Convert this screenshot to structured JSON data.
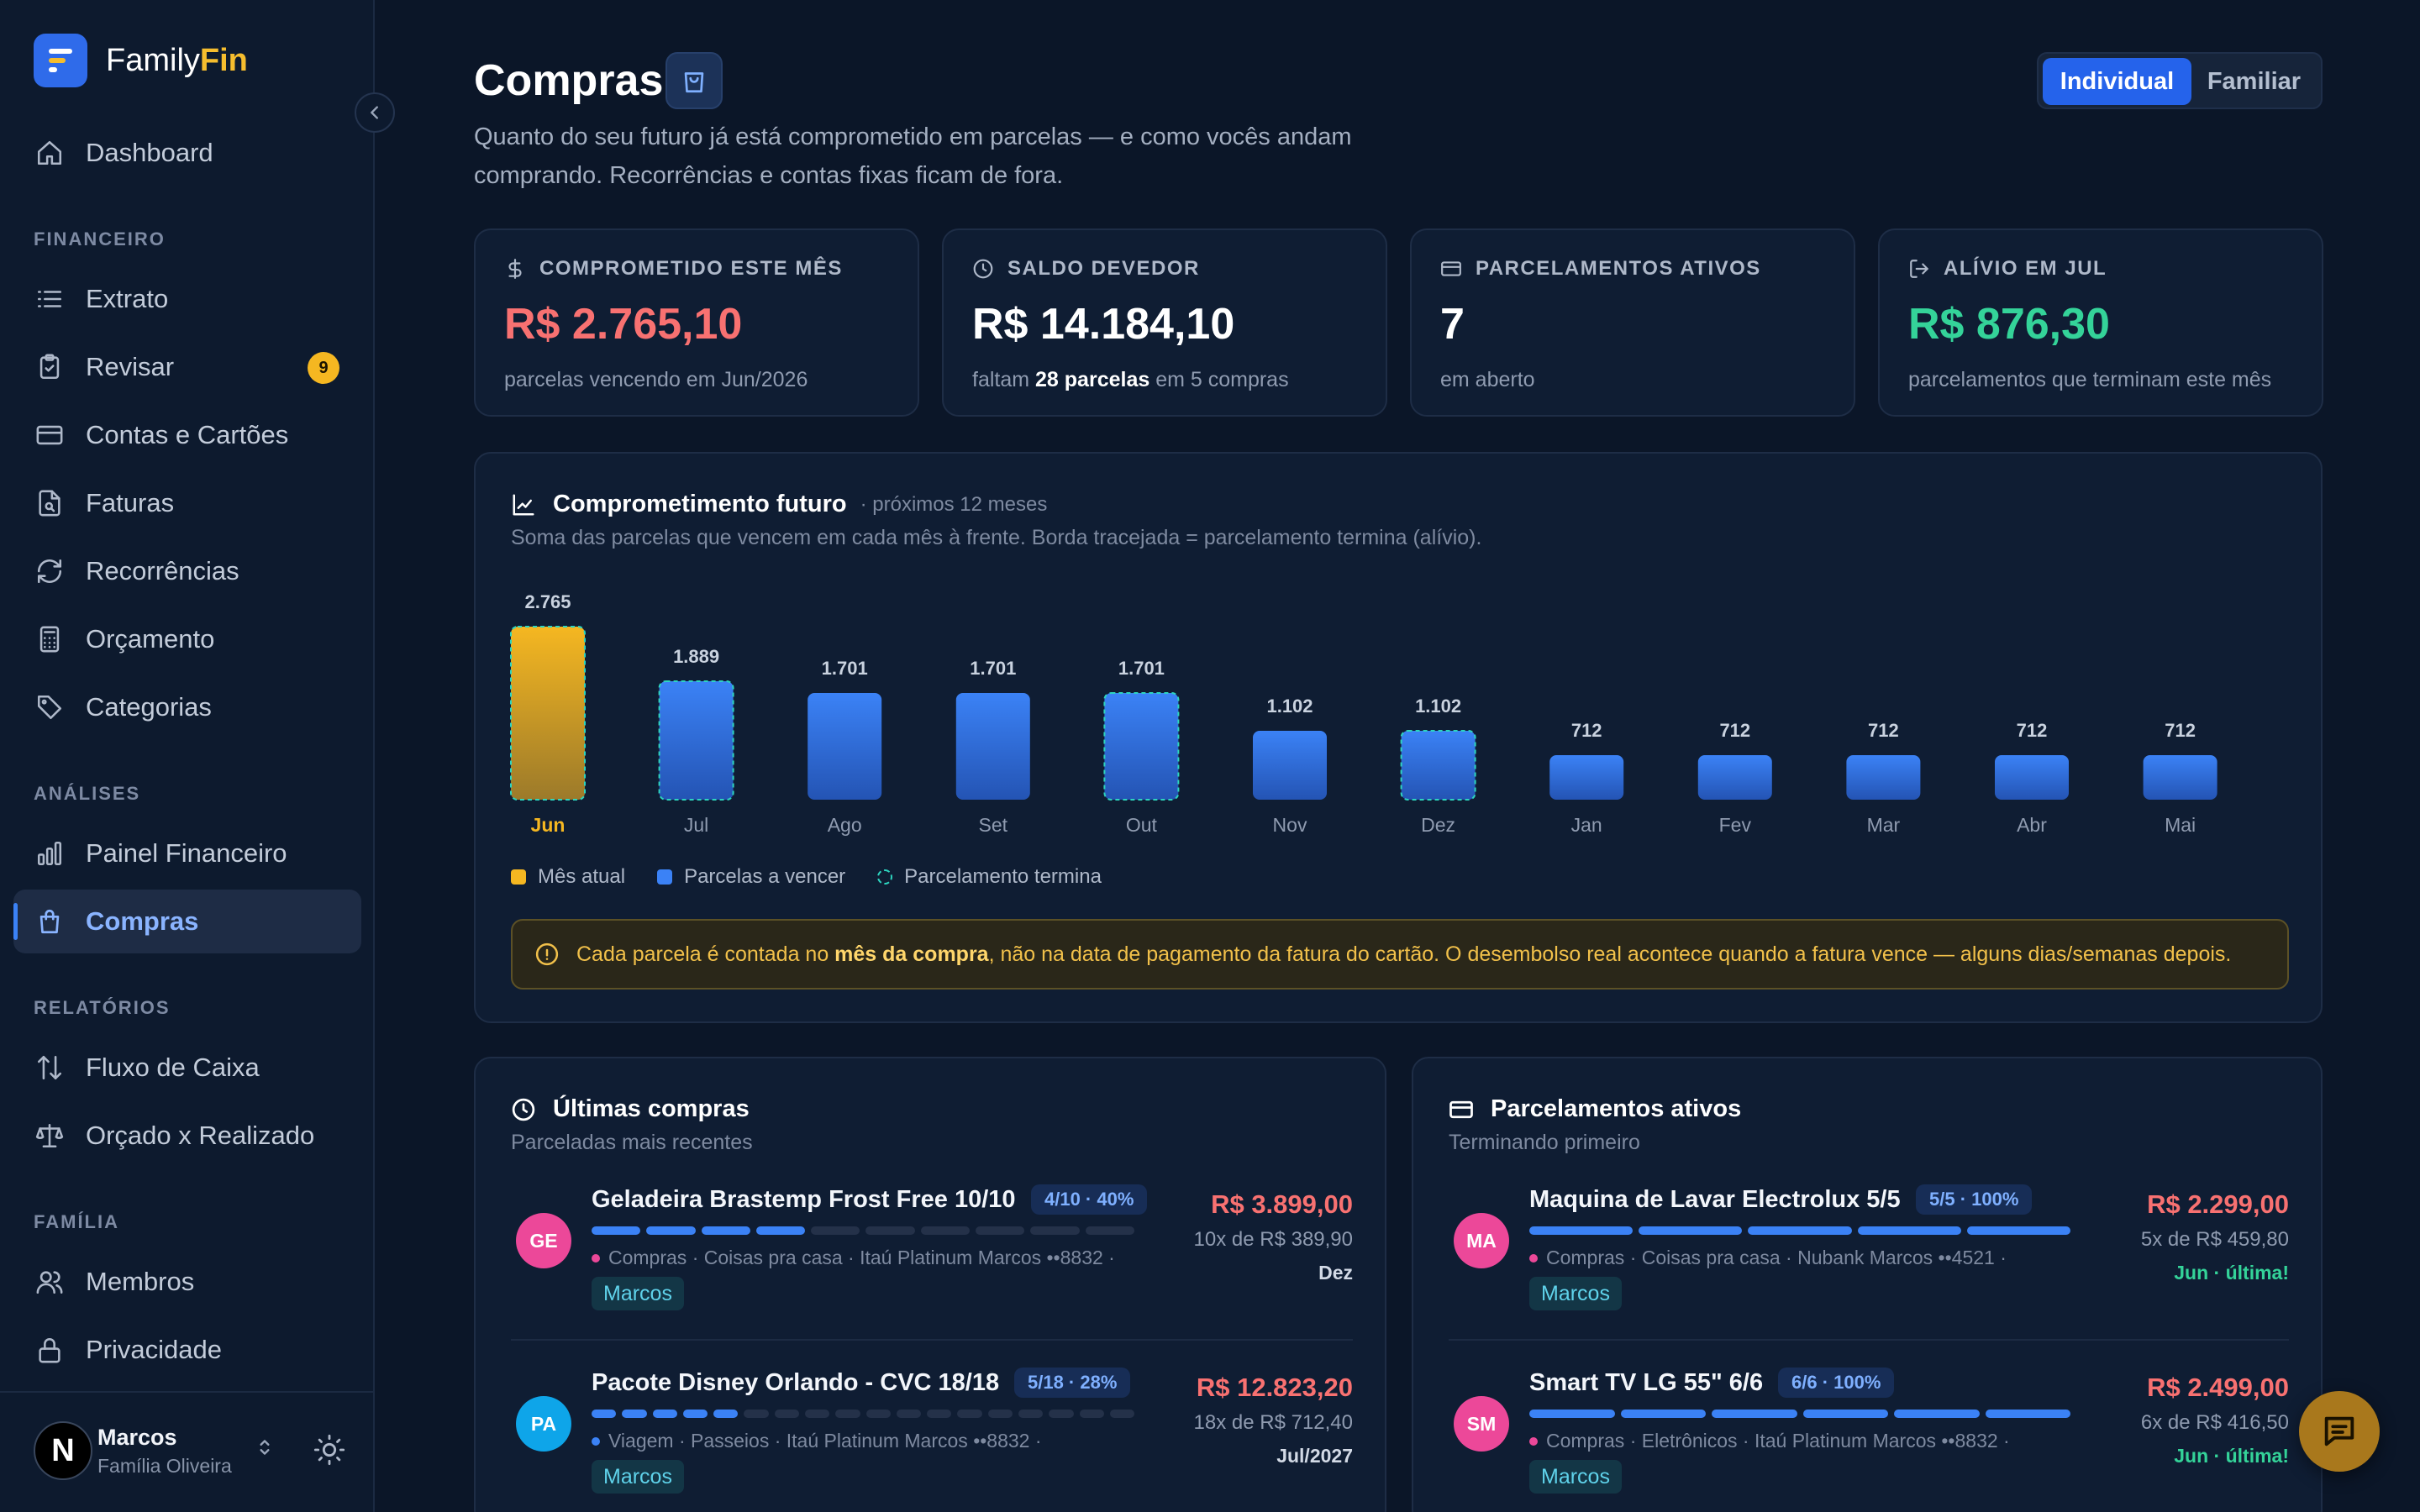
{
  "app": {
    "brand_prefix": "Family",
    "brand_suffix": "Fin",
    "colors": {
      "accent": "#2563eb",
      "brand_yellow": "#f5bd2e",
      "negative": "#f87171",
      "positive": "#34d399"
    }
  },
  "sidebar": {
    "top_item": {
      "label": "Dashboard",
      "icon": "home-icon"
    },
    "sections": {
      "financeiro": "FINANCEIRO",
      "analises": "ANÁLISES",
      "relatorios": "RELATÓRIOS",
      "familia": "FAMÍLIA"
    },
    "items": {
      "extrato": {
        "label": "Extrato",
        "icon": "list-icon"
      },
      "revisar": {
        "label": "Revisar",
        "icon": "clipboard-check-icon",
        "badge": "9"
      },
      "contas": {
        "label": "Contas e Cartões",
        "icon": "credit-card-icon"
      },
      "faturas": {
        "label": "Faturas",
        "icon": "file-search-icon"
      },
      "recorrencias": {
        "label": "Recorrências",
        "icon": "refresh-icon"
      },
      "orcamento": {
        "label": "Orçamento",
        "icon": "calculator-icon"
      },
      "categorias": {
        "label": "Categorias",
        "icon": "tag-icon"
      },
      "painel": {
        "label": "Painel Financeiro",
        "icon": "bar-chart-icon"
      },
      "compras": {
        "label": "Compras",
        "icon": "shopping-bag-icon",
        "active": true
      },
      "fluxo": {
        "label": "Fluxo de Caixa",
        "icon": "arrows-updown-icon"
      },
      "orcado": {
        "label": "Orçado x Realizado",
        "icon": "scale-icon"
      },
      "membros": {
        "label": "Membros",
        "icon": "users-icon"
      },
      "privacidade": {
        "label": "Privacidade",
        "icon": "lock-icon"
      }
    },
    "user": {
      "initial": "N",
      "name": "Marcos",
      "family": "Família Oliveira"
    }
  },
  "header": {
    "title": "Compras",
    "subtitle": "Quanto do seu futuro já está comprometido em parcelas — e como vocês andam comprando. Recorrências e contas fixas ficam de fora.",
    "toggle": {
      "individual": "Individual",
      "familiar": "Familiar",
      "selected": "Individual"
    }
  },
  "stats": [
    {
      "icon": "dollar-icon",
      "label": "COMPROMETIDO ESTE MÊS",
      "value": "R$ 2.765,10",
      "color": "#f87171",
      "note_pre": "parcelas vencendo em Jun/2026",
      "note_bold": "",
      "note_post": ""
    },
    {
      "icon": "clock-icon",
      "label": "SALDO DEVEDOR",
      "value": "R$ 14.184,10",
      "color": "#ffffff",
      "note_pre": "faltam ",
      "note_bold": "28 parcelas",
      "note_post": " em 5 compras"
    },
    {
      "icon": "credit-card-icon",
      "label": "PARCELAMENTOS ATIVOS",
      "value": "7",
      "color": "#ffffff",
      "note_pre": "em aberto",
      "note_bold": "",
      "note_post": ""
    },
    {
      "icon": "logout-icon",
      "label": "ALÍVIO EM JUL",
      "value": "R$ 876,30",
      "color": "#34d399",
      "note_pre": "parcelamentos que terminam este mês",
      "note_bold": "",
      "note_post": ""
    }
  ],
  "chart_card": {
    "title": "Comprometimento futuro",
    "range": "· próximos 12 meses",
    "description": "Soma das parcelas que vencem em cada mês à frente. Borda tracejada = parcelamento termina (alívio).",
    "legend": {
      "current": "Mês atual",
      "upcoming": "Parcelas a vencer",
      "ending": "Parcelamento termina"
    },
    "alert_pre": "Cada parcela é contada no ",
    "alert_bold": "mês da compra",
    "alert_post": ", não na data de pagamento da fatura do cartão. O desembolso real acontece quando a fatura vence — alguns dias/semanas depois."
  },
  "chart_data": {
    "type": "bar",
    "categories": [
      "Jun",
      "Jul",
      "Ago",
      "Set",
      "Out",
      "Nov",
      "Dez",
      "Jan",
      "Fev",
      "Mar",
      "Abr",
      "Mai"
    ],
    "values": [
      2765,
      1889,
      1701,
      1701,
      1701,
      1102,
      1102,
      712,
      712,
      712,
      712,
      712
    ],
    "value_labels": [
      "2.765",
      "1.889",
      "1.701",
      "1.701",
      "1.701",
      "1.102",
      "1.102",
      "712",
      "712",
      "712",
      "712",
      "712"
    ],
    "current_index": 0,
    "ending_months": [
      "Jun",
      "Jul",
      "Out",
      "Dez"
    ],
    "colors": {
      "current": "#f5b721",
      "upcoming": "#3b82f6",
      "ending_border": "#2dd4bf"
    },
    "title": "Comprometimento futuro",
    "xlabel": "",
    "ylabel": "",
    "ylim": [
      0,
      2765
    ],
    "grid": false,
    "legend_position": "bottom-left"
  },
  "latest": {
    "title": "Últimas compras",
    "subtitle": "Parceladas mais recentes",
    "items": [
      {
        "initials": "GE",
        "avatar_color": "#ec4899",
        "title": "Geladeira Brastemp Frost Free 10/10",
        "chip": "4/10 · 40%",
        "paid": 4,
        "total": 10,
        "dot_color": "#ec4899",
        "meta": "Compras · Coisas pra casa  ·  Itaú Platinum Marcos ••8832  ·",
        "owner": "Marcos",
        "amount": "R$ 3.899,00",
        "installment": "10x de R$ 389,90",
        "end": "Dez",
        "end_green": false
      },
      {
        "initials": "PA",
        "avatar_color": "#0ea5e9",
        "title": "Pacote Disney Orlando - CVC 18/18",
        "chip": "5/18 · 28%",
        "paid": 5,
        "total": 18,
        "dot_color": "#3b82f6",
        "meta": "Viagem · Passeios  ·  Itaú Platinum Marcos ••8832  ·",
        "owner": "Marcos",
        "amount": "R$ 12.823,20",
        "installment": "18x de R$ 712,40",
        "end": "Jul/2027",
        "end_green": false
      }
    ]
  },
  "active": {
    "title": "Parcelamentos ativos",
    "subtitle": "Terminando primeiro",
    "items": [
      {
        "initials": "MA",
        "avatar_color": "#ec4899",
        "title": "Maquina de Lavar Electrolux 5/5",
        "chip": "5/5 · 100%",
        "paid": 5,
        "total": 5,
        "dot_color": "#ec4899",
        "meta": "Compras · Coisas pra casa  ·  Nubank Marcos ••4521  ·",
        "owner": "Marcos",
        "amount": "R$ 2.299,00",
        "installment": "5x de R$ 459,80",
        "end": "Jun · última!",
        "end_green": true
      },
      {
        "initials": "SM",
        "avatar_color": "#ec4899",
        "title": "Smart TV LG 55\" 6/6",
        "chip": "6/6 · 100%",
        "paid": 6,
        "total": 6,
        "dot_color": "#ec4899",
        "meta": "Compras · Eletrônicos  ·  Itaú Platinum Marcos ••8832  ·",
        "owner": "Marcos",
        "amount": "R$ 2.499,00",
        "installment": "6x de R$ 416,50",
        "end": "Jun · última!",
        "end_green": true
      }
    ]
  }
}
